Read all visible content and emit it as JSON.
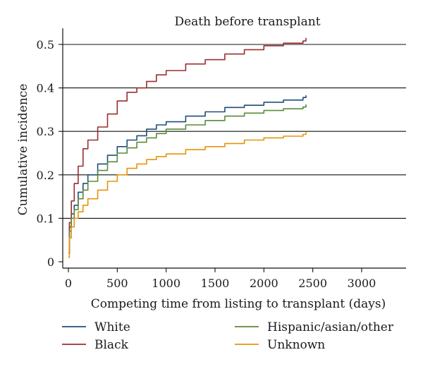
{
  "chart_data": {
    "type": "line",
    "title": "Death before transplant",
    "xlabel": "Competing time from listing to transplant (days)",
    "ylabel": "Cumulative incidence",
    "xlim": [
      0,
      3400
    ],
    "ylim": [
      0,
      0.51
    ],
    "xticks": [
      0,
      500,
      1000,
      1500,
      2000,
      2500,
      3000
    ],
    "yticks": [
      0,
      0.1,
      0.2,
      0.3,
      0.4,
      0.5
    ],
    "ytick_labels": [
      "0",
      "0.1",
      "0.2",
      "0.3",
      "0.4",
      "0.5"
    ],
    "grid": "horizontal",
    "legend_position": "bottom",
    "series": [
      {
        "name": "White",
        "color": "#1f4e79",
        "x": [
          0,
          10,
          30,
          60,
          100,
          150,
          200,
          300,
          400,
          500,
          600,
          700,
          800,
          900,
          1000,
          1200,
          1400,
          1600,
          1800,
          2000,
          2200,
          2400,
          2430
        ],
        "y": [
          0.02,
          0.08,
          0.11,
          0.13,
          0.16,
          0.18,
          0.2,
          0.225,
          0.245,
          0.265,
          0.28,
          0.29,
          0.305,
          0.315,
          0.322,
          0.335,
          0.345,
          0.355,
          0.36,
          0.367,
          0.372,
          0.378,
          0.383
        ]
      },
      {
        "name": "Black",
        "color": "#9b2d30",
        "x": [
          0,
          10,
          30,
          60,
          100,
          150,
          200,
          300,
          400,
          500,
          600,
          700,
          800,
          900,
          1000,
          1200,
          1400,
          1600,
          1800,
          2000,
          2200,
          2400,
          2430
        ],
        "y": [
          0.02,
          0.09,
          0.14,
          0.18,
          0.22,
          0.26,
          0.28,
          0.31,
          0.34,
          0.37,
          0.39,
          0.4,
          0.415,
          0.43,
          0.44,
          0.455,
          0.465,
          0.478,
          0.488,
          0.497,
          0.503,
          0.508,
          0.515
        ]
      },
      {
        "name": "Hispanic/asian/other",
        "color": "#5a8a3c",
        "x": [
          0,
          10,
          30,
          60,
          100,
          150,
          200,
          300,
          400,
          500,
          600,
          700,
          800,
          900,
          1000,
          1200,
          1400,
          1600,
          1800,
          2000,
          2200,
          2400,
          2430
        ],
        "y": [
          0.02,
          0.07,
          0.1,
          0.12,
          0.145,
          0.165,
          0.185,
          0.21,
          0.23,
          0.25,
          0.262,
          0.275,
          0.285,
          0.295,
          0.305,
          0.315,
          0.325,
          0.335,
          0.342,
          0.348,
          0.352,
          0.356,
          0.362
        ]
      },
      {
        "name": "Unknown",
        "color": "#e8930a",
        "x": [
          0,
          10,
          30,
          60,
          100,
          150,
          200,
          300,
          400,
          500,
          600,
          700,
          800,
          900,
          1000,
          1200,
          1400,
          1600,
          1800,
          2000,
          2200,
          2400,
          2430
        ],
        "y": [
          0.01,
          0.055,
          0.08,
          0.1,
          0.115,
          0.13,
          0.145,
          0.165,
          0.185,
          0.2,
          0.215,
          0.225,
          0.235,
          0.242,
          0.248,
          0.258,
          0.265,
          0.272,
          0.28,
          0.285,
          0.289,
          0.293,
          0.298
        ]
      }
    ]
  }
}
